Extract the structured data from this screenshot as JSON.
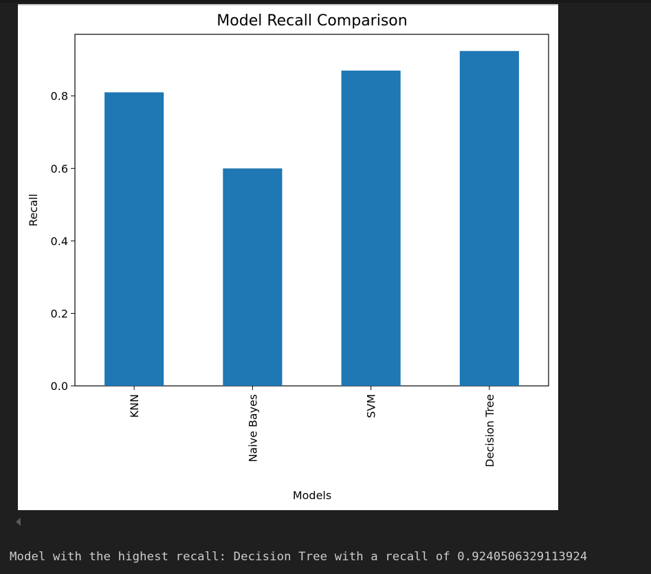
{
  "chart_data": {
    "type": "bar",
    "title": "Model Recall Comparison",
    "xlabel": "Models",
    "ylabel": "Recall",
    "categories": [
      "KNN",
      "Naive Bayes",
      "SVM",
      "Decision Tree"
    ],
    "values": [
      0.81,
      0.6,
      0.87,
      0.924
    ],
    "ylim": [
      0,
      0.97
    ],
    "yticks": [
      "0.0",
      "0.2",
      "0.4",
      "0.6",
      "0.8"
    ],
    "bar_color": "#1f77b4",
    "grid": false
  },
  "output": {
    "result_line": "Model with the highest recall: Decision Tree with a recall of 0.9240506329113924"
  },
  "theme": {
    "background": "#1f1f1f",
    "figure_background": "#ffffff",
    "text_color": "#cccccc"
  }
}
